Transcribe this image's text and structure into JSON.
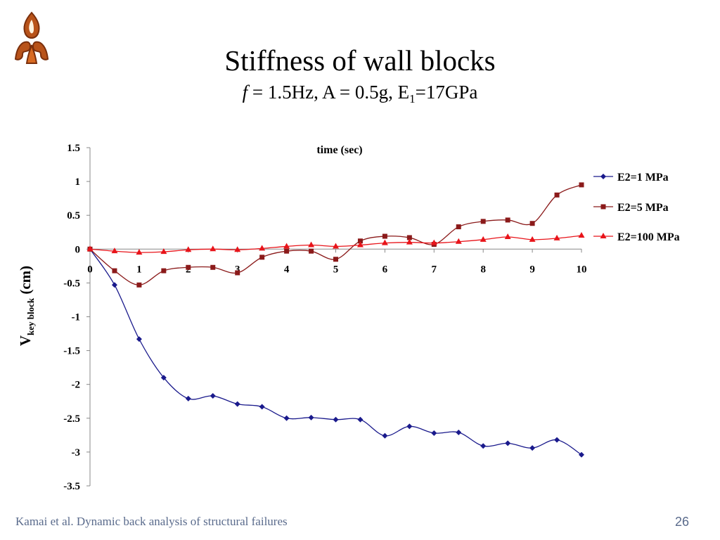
{
  "slide": {
    "title": "Stiffness of wall blocks",
    "subtitle": {
      "f_symbol": "f",
      "text1": " = 1.5Hz, A = 0.5g, E",
      "sub": "1",
      "text2": "=17GPa"
    },
    "footer": "Kamai et al. Dynamic back analysis of structural failures",
    "page_number": "26",
    "logo_icon": "university-logo-icon"
  },
  "chart_data": {
    "type": "line",
    "title": "time (sec)",
    "ylabel": {
      "main": "V",
      "sub": "key block",
      "unit": " (cm)"
    },
    "ylim": [
      -3.5,
      1.5
    ],
    "xlim": [
      0,
      10
    ],
    "yticks": [
      "1.5",
      "1",
      "0.5",
      "0",
      "-0.5",
      "-1",
      "-1.5",
      "-2",
      "-2.5",
      "-3",
      "-3.5"
    ],
    "xticks": [
      "0",
      "1",
      "2",
      "3",
      "4",
      "5",
      "6",
      "7",
      "8",
      "9",
      "10"
    ],
    "grid": false,
    "legend_position": "right",
    "x": [
      0,
      0.5,
      1,
      1.5,
      2,
      2.5,
      3,
      3.5,
      4,
      4.5,
      5,
      5.5,
      6,
      6.5,
      7,
      7.5,
      8,
      8.5,
      9,
      9.5,
      10
    ],
    "series": [
      {
        "name": "E2=1 MPa",
        "color": "#1a1a8c",
        "marker": "diamond",
        "values": [
          0,
          -0.53,
          -1.33,
          -1.9,
          -2.21,
          -2.17,
          -2.29,
          -2.33,
          -2.5,
          -2.49,
          -2.52,
          -2.52,
          -2.76,
          -2.62,
          -2.72,
          -2.71,
          -2.91,
          -2.87,
          -2.94,
          -2.82,
          -3.04
        ]
      },
      {
        "name": "E2=5 MPa",
        "color": "#8b1a1a",
        "marker": "square",
        "values": [
          0,
          -0.32,
          -0.53,
          -0.32,
          -0.27,
          -0.27,
          -0.35,
          -0.12,
          -0.03,
          -0.03,
          -0.15,
          0.12,
          0.19,
          0.17,
          0.07,
          0.33,
          0.41,
          0.43,
          0.38,
          0.8,
          0.95
        ]
      },
      {
        "name": "E2=100 MPa",
        "color": "#e8141a",
        "marker": "triangle",
        "values": [
          0,
          -0.03,
          -0.05,
          -0.04,
          -0.01,
          0.0,
          -0.01,
          0.01,
          0.04,
          0.06,
          0.04,
          0.06,
          0.09,
          0.1,
          0.09,
          0.11,
          0.14,
          0.18,
          0.14,
          0.16,
          0.2
        ]
      }
    ]
  }
}
